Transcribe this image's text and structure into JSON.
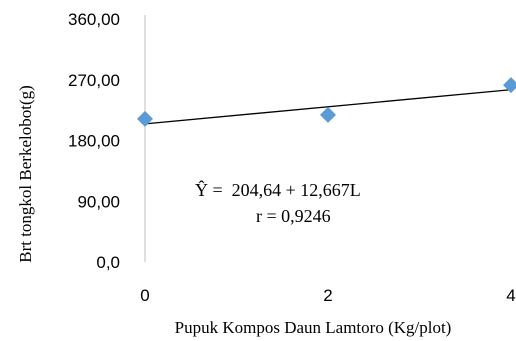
{
  "chart_data": {
    "type": "scatter",
    "xlabel": "Pupuk Kompos Daun Lamtoro (Kg/plot)",
    "ylabel": "Brt tongkol Berkelobot(g)",
    "x_ticks": [
      "0",
      "2",
      "4"
    ],
    "y_ticks": [
      "0,0",
      "90,00",
      "180,00",
      "270,00",
      "360,00"
    ],
    "xlim": [
      0,
      4
    ],
    "ylim": [
      0,
      360
    ],
    "series": [
      {
        "x": [
          0,
          2,
          4
        ],
        "y": [
          212,
          218,
          262
        ],
        "color": "#5b9bd5",
        "marker": "diamond"
      }
    ],
    "trendline": {
      "intercept": 204.64,
      "slope": 12.667,
      "color": "#000000"
    },
    "annotations": {
      "equation": "Ŷ =  204,64 + 12,667L",
      "r": "r = 0,9246"
    }
  }
}
